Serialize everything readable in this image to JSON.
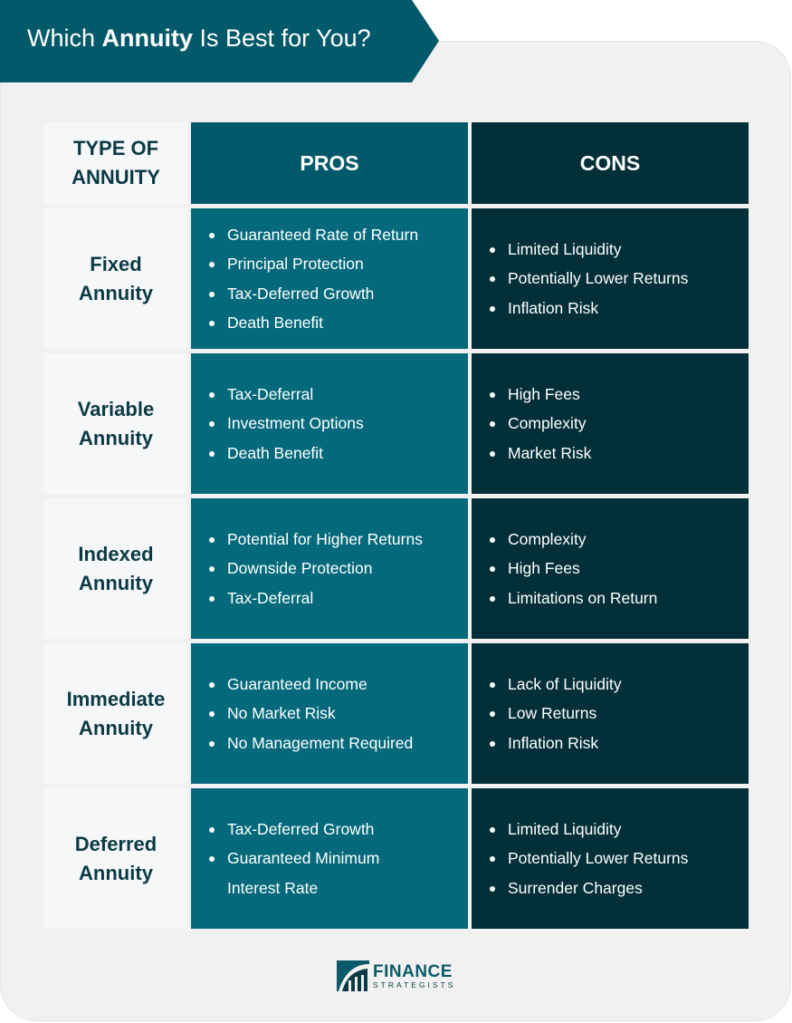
{
  "title": {
    "prefix": "Which ",
    "bold": "Annuity",
    "suffix": " Is Best for You?"
  },
  "headers": {
    "type": "TYPE OF ANNUITY",
    "pros": "PROS",
    "cons": "CONS"
  },
  "rows": [
    {
      "type": "Fixed Annuity",
      "pros": [
        "Guaranteed Rate of Return",
        "Principal Protection",
        "Tax-Deferred Growth",
        "Death Benefit"
      ],
      "cons": [
        "Limited Liquidity",
        "Potentially Lower Returns",
        "Inflation Risk"
      ]
    },
    {
      "type": "Variable Annuity",
      "pros": [
        "Tax-Deferral",
        "Investment Options",
        "Death Benefit"
      ],
      "cons": [
        "High Fees",
        "Complexity",
        "Market Risk"
      ]
    },
    {
      "type": "Indexed Annuity",
      "pros": [
        "Potential for Higher Returns",
        "Downside Protection",
        "Tax-Deferral"
      ],
      "cons": [
        "Complexity",
        "High Fees",
        "Limitations on Return"
      ]
    },
    {
      "type": "Immediate Annuity",
      "pros": [
        "Guaranteed Income",
        "No Market Risk",
        "No Management Required"
      ],
      "cons": [
        "Lack of Liquidity",
        "Low Returns",
        "Inflation Risk"
      ]
    },
    {
      "type": "Deferred Annuity",
      "pros": [
        "Tax-Deferred Growth",
        "Guaranteed Minimum Interest Rate"
      ],
      "cons": [
        "Limited Liquidity",
        "Potentially Lower Returns",
        "Surrender Charges"
      ]
    }
  ],
  "logo": {
    "line1": "FINANCE",
    "line2": "STRATEGISTS"
  },
  "colors": {
    "banner": "#02596a",
    "pros": "#046a7b",
    "cons": "#032f39",
    "type_bg": "#f6f7f9"
  }
}
